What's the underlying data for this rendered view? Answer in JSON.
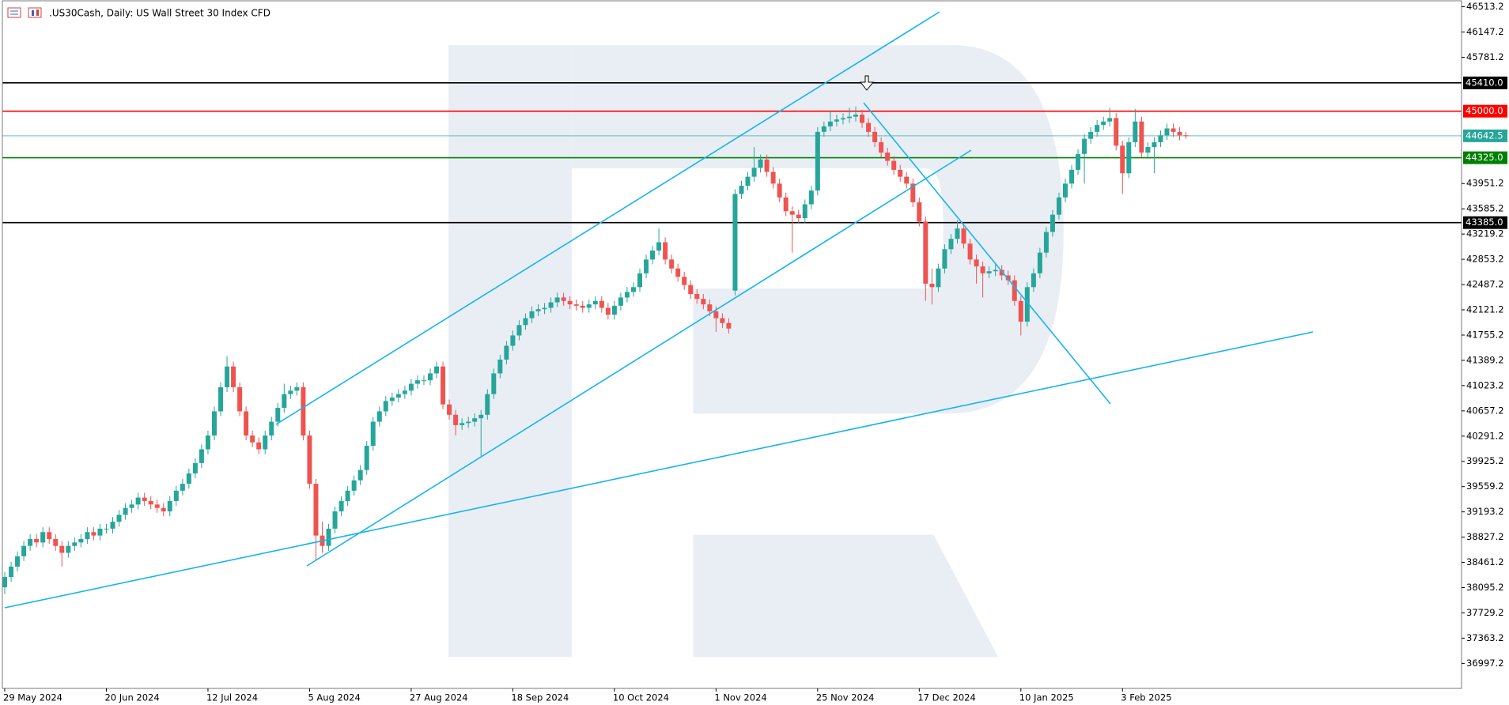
{
  "chart_data": {
    "type": "candlestick",
    "title": ".US30Cash, Daily:  US Wall Street 30 Index CFD",
    "up_color": "#26a69a",
    "down_color": "#ef5350",
    "grid": false,
    "ylim": [
      36635,
      46611
    ],
    "yticks": [
      46513.2,
      46147.2,
      45781.2,
      43951.2,
      43585.2,
      43219.2,
      42853.2,
      42487.2,
      42121.2,
      41755.2,
      41389.2,
      41023.2,
      40657.2,
      40291.2,
      39925.2,
      39559.2,
      39193.2,
      38827.2,
      38461.2,
      38095.2,
      37729.2,
      37363.2,
      36997.2
    ],
    "levels": [
      {
        "value": 45410,
        "label": "45410.0",
        "color": "#000000"
      },
      {
        "value": 45000,
        "label": "45000.0",
        "color": "#ff0000"
      },
      {
        "value": 44642.5,
        "label": "44642.5",
        "color": "#26a69a"
      },
      {
        "value": 44325,
        "label": "44325.0",
        "color": "#008000"
      },
      {
        "value": 43385,
        "label": "43385.0",
        "color": "#000000"
      }
    ],
    "categories": [
      "29 May 2024",
      null,
      null,
      null,
      null,
      null,
      null,
      null,
      null,
      null,
      null,
      null,
      null,
      null,
      null,
      null,
      "20 Jun 2024",
      null,
      null,
      null,
      null,
      null,
      null,
      null,
      null,
      null,
      null,
      null,
      null,
      null,
      null,
      null,
      "12 Jul 2024",
      null,
      null,
      null,
      null,
      null,
      null,
      null,
      null,
      null,
      null,
      null,
      null,
      null,
      null,
      null,
      "5 Aug 2024",
      null,
      null,
      null,
      null,
      null,
      null,
      null,
      null,
      null,
      null,
      null,
      null,
      null,
      null,
      null,
      "27 Aug 2024",
      null,
      null,
      null,
      null,
      null,
      null,
      null,
      null,
      null,
      null,
      null,
      null,
      null,
      null,
      null,
      "18 Sep 2024",
      null,
      null,
      null,
      null,
      null,
      null,
      null,
      null,
      null,
      null,
      null,
      null,
      null,
      null,
      null,
      "10 Oct 2024",
      null,
      null,
      null,
      null,
      null,
      null,
      null,
      null,
      null,
      null,
      null,
      null,
      null,
      null,
      null,
      "1 Nov 2024",
      null,
      null,
      null,
      null,
      null,
      null,
      null,
      null,
      null,
      null,
      null,
      null,
      null,
      null,
      null,
      "25 Nov 2024",
      null,
      null,
      null,
      null,
      null,
      null,
      null,
      null,
      null,
      null,
      null,
      null,
      null,
      null,
      null,
      "17 Dec 2024",
      null,
      null,
      null,
      null,
      null,
      null,
      null,
      null,
      null,
      null,
      null,
      null,
      null,
      null,
      null,
      "10 Jan 2025",
      null,
      null,
      null,
      null,
      null,
      null,
      null,
      null,
      null,
      null,
      null,
      null,
      null,
      null,
      null,
      "3 Feb 2025",
      null,
      null,
      null,
      null,
      null,
      null,
      null,
      null,
      null,
      null
    ],
    "ohlc": [
      [
        38100,
        38320,
        38000,
        38250
      ],
      [
        38250,
        38470,
        38180,
        38400
      ],
      [
        38400,
        38620,
        38330,
        38550
      ],
      [
        38550,
        38770,
        38480,
        38700
      ],
      [
        38700,
        38870,
        38630,
        38800
      ],
      [
        38800,
        38870,
        38680,
        38750
      ],
      [
        38750,
        38970,
        38680,
        38900
      ],
      [
        38900,
        38970,
        38730,
        38800
      ],
      [
        38800,
        38870,
        38630,
        38700
      ],
      [
        38700,
        38770,
        38400,
        38600
      ],
      [
        38600,
        38770,
        38530,
        38700
      ],
      [
        38700,
        38820,
        38630,
        38750
      ],
      [
        38750,
        38870,
        38680,
        38800
      ],
      [
        38800,
        38970,
        38730,
        38900
      ],
      [
        38900,
        38970,
        38780,
        38850
      ],
      [
        38850,
        39020,
        38780,
        38950
      ],
      [
        38950,
        39020,
        38880,
        38950
      ],
      [
        38950,
        39120,
        38880,
        39050
      ],
      [
        39050,
        39220,
        38980,
        39150
      ],
      [
        39150,
        39320,
        39080,
        39250
      ],
      [
        39250,
        39370,
        39180,
        39300
      ],
      [
        39300,
        39470,
        39230,
        39400
      ],
      [
        39400,
        39470,
        39280,
        39350
      ],
      [
        39350,
        39420,
        39230,
        39300
      ],
      [
        39300,
        39370,
        39180,
        39250
      ],
      [
        39250,
        39320,
        39130,
        39200
      ],
      [
        39200,
        39420,
        39130,
        39350
      ],
      [
        39350,
        39570,
        39280,
        39500
      ],
      [
        39500,
        39670,
        39430,
        39600
      ],
      [
        39600,
        39820,
        39530,
        39750
      ],
      [
        39750,
        39970,
        39680,
        39900
      ],
      [
        39900,
        40170,
        39830,
        40100
      ],
      [
        40100,
        40370,
        40030,
        40300
      ],
      [
        40300,
        40720,
        40230,
        40650
      ],
      [
        40650,
        41070,
        40580,
        41000
      ],
      [
        41000,
        41450,
        40930,
        41300
      ],
      [
        41300,
        41370,
        40930,
        41000
      ],
      [
        41000,
        41070,
        40580,
        40650
      ],
      [
        40650,
        40720,
        40230,
        40300
      ],
      [
        40300,
        40370,
        40130,
        40200
      ],
      [
        40200,
        40270,
        40030,
        40100
      ],
      [
        40100,
        40370,
        40030,
        40300
      ],
      [
        40300,
        40570,
        40230,
        40500
      ],
      [
        40500,
        40770,
        40430,
        40700
      ],
      [
        40700,
        41050,
        40630,
        40900
      ],
      [
        40900,
        41020,
        40830,
        40950
      ],
      [
        40950,
        41070,
        40880,
        41000
      ],
      [
        41000,
        41070,
        40230,
        40300
      ],
      [
        40300,
        40370,
        39530,
        39600
      ],
      [
        39600,
        39670,
        38500,
        38850
      ],
      [
        38850,
        39050,
        38600,
        38700
      ],
      [
        38700,
        39020,
        38630,
        38950
      ],
      [
        38950,
        39270,
        38880,
        39200
      ],
      [
        39200,
        39420,
        39130,
        39350
      ],
      [
        39350,
        39570,
        39280,
        39500
      ],
      [
        39500,
        39720,
        39430,
        39650
      ],
      [
        39650,
        39870,
        39580,
        39800
      ],
      [
        39800,
        40220,
        39730,
        40150
      ],
      [
        40150,
        40570,
        40080,
        40500
      ],
      [
        40500,
        40720,
        40430,
        40650
      ],
      [
        40650,
        40870,
        40580,
        40800
      ],
      [
        40800,
        40920,
        40730,
        40850
      ],
      [
        40850,
        40970,
        40780,
        40900
      ],
      [
        40900,
        41020,
        40830,
        40950
      ],
      [
        40950,
        41120,
        40880,
        41050
      ],
      [
        41050,
        41170,
        40980,
        41100
      ],
      [
        41100,
        41170,
        41030,
        41100
      ],
      [
        41100,
        41270,
        41030,
        41200
      ],
      [
        41200,
        41370,
        41130,
        41300
      ],
      [
        41300,
        41370,
        40680,
        40750
      ],
      [
        40750,
        40820,
        40530,
        40600
      ],
      [
        40600,
        40670,
        40300,
        40450
      ],
      [
        40450,
        40550,
        40380,
        40480
      ],
      [
        40480,
        40570,
        40410,
        40500
      ],
      [
        40500,
        40620,
        40430,
        40550
      ],
      [
        40550,
        40670,
        40000,
        40600
      ],
      [
        40600,
        40970,
        40530,
        40900
      ],
      [
        40900,
        41270,
        40830,
        41200
      ],
      [
        41200,
        41470,
        41130,
        41400
      ],
      [
        41400,
        41670,
        41330,
        41600
      ],
      [
        41600,
        41820,
        41530,
        41750
      ],
      [
        41750,
        41970,
        41680,
        41900
      ],
      [
        41900,
        42070,
        41830,
        42000
      ],
      [
        42000,
        42170,
        41930,
        42100
      ],
      [
        42100,
        42200,
        42030,
        42130
      ],
      [
        42130,
        42220,
        42060,
        42150
      ],
      [
        42150,
        42300,
        42080,
        42230
      ],
      [
        42230,
        42370,
        42160,
        42300
      ],
      [
        42300,
        42370,
        42180,
        42250
      ],
      [
        42250,
        42320,
        42130,
        42200
      ],
      [
        42200,
        42270,
        42110,
        42180
      ],
      [
        42180,
        42250,
        42080,
        42150
      ],
      [
        42150,
        42270,
        42080,
        42200
      ],
      [
        42200,
        42320,
        42130,
        42250
      ],
      [
        42250,
        42320,
        42080,
        42150
      ],
      [
        42150,
        42220,
        41980,
        42050
      ],
      [
        42050,
        42250,
        41980,
        42180
      ],
      [
        42180,
        42370,
        42110,
        42300
      ],
      [
        42300,
        42450,
        42230,
        42380
      ],
      [
        42380,
        42520,
        42310,
        42450
      ],
      [
        42450,
        42720,
        42380,
        42650
      ],
      [
        42650,
        42920,
        42580,
        42850
      ],
      [
        42850,
        43050,
        42780,
        42980
      ],
      [
        42980,
        43300,
        42910,
        43100
      ],
      [
        43100,
        43170,
        42780,
        42850
      ],
      [
        42850,
        42920,
        42650,
        42720
      ],
      [
        42720,
        42790,
        42530,
        42600
      ],
      [
        42600,
        42670,
        42410,
        42480
      ],
      [
        42480,
        42550,
        42280,
        42350
      ],
      [
        42350,
        42420,
        42210,
        42280
      ],
      [
        42280,
        42350,
        42130,
        42200
      ],
      [
        42200,
        42270,
        42030,
        42100
      ],
      [
        42100,
        42170,
        41800,
        42000
      ],
      [
        42000,
        42070,
        41860,
        41930
      ],
      [
        41930,
        42000,
        41780,
        41850
      ],
      [
        42400,
        43870,
        42330,
        43800
      ],
      [
        43800,
        43990,
        43730,
        43920
      ],
      [
        43920,
        44120,
        43850,
        44050
      ],
      [
        44050,
        44480,
        43980,
        44180
      ],
      [
        44180,
        44370,
        44110,
        44300
      ],
      [
        44300,
        44370,
        44050,
        44120
      ],
      [
        44120,
        44190,
        43880,
        43950
      ],
      [
        43950,
        44020,
        43680,
        43750
      ],
      [
        43750,
        43820,
        43480,
        43550
      ],
      [
        43550,
        43620,
        42950,
        43500
      ],
      [
        43500,
        43570,
        43380,
        43450
      ],
      [
        43450,
        43720,
        43380,
        43650
      ],
      [
        43650,
        43920,
        43580,
        43850
      ],
      [
        43850,
        44770,
        43780,
        44700
      ],
      [
        44700,
        44850,
        44630,
        44780
      ],
      [
        44780,
        45000,
        44710,
        44850
      ],
      [
        44850,
        44950,
        44780,
        44880
      ],
      [
        44880,
        44970,
        44810,
        44900
      ],
      [
        44900,
        45050,
        44830,
        44920
      ],
      [
        44920,
        45070,
        44850,
        44950
      ],
      [
        44950,
        45020,
        44760,
        44830
      ],
      [
        44830,
        44900,
        44630,
        44700
      ],
      [
        44700,
        44770,
        44480,
        44550
      ],
      [
        44550,
        44620,
        44330,
        44400
      ],
      [
        44400,
        44470,
        44210,
        44280
      ],
      [
        44280,
        44350,
        44080,
        44150
      ],
      [
        44150,
        44220,
        43980,
        44050
      ],
      [
        44050,
        44120,
        43880,
        43950
      ],
      [
        43950,
        44020,
        43610,
        43680
      ],
      [
        43680,
        43750,
        43330,
        43400
      ],
      [
        43400,
        43470,
        42250,
        42500
      ],
      [
        42500,
        42720,
        42200,
        42450
      ],
      [
        42450,
        42790,
        42380,
        42720
      ],
      [
        42720,
        43070,
        42650,
        43000
      ],
      [
        43000,
        43220,
        42930,
        43150
      ],
      [
        43150,
        43420,
        43080,
        43300
      ],
      [
        43300,
        43370,
        43010,
        43080
      ],
      [
        43080,
        43150,
        42780,
        42850
      ],
      [
        42850,
        42920,
        42500,
        42750
      ],
      [
        42750,
        42820,
        42300,
        42650
      ],
      [
        42650,
        42750,
        42580,
        42680
      ],
      [
        42680,
        42800,
        42610,
        42700
      ],
      [
        42700,
        42770,
        42550,
        42620
      ],
      [
        42620,
        42690,
        42480,
        42550
      ],
      [
        42550,
        42620,
        42180,
        42250
      ],
      [
        42250,
        42320,
        41750,
        41950
      ],
      [
        41950,
        42520,
        41880,
        42450
      ],
      [
        42450,
        42720,
        42380,
        42650
      ],
      [
        42650,
        43020,
        42580,
        42950
      ],
      [
        42950,
        43320,
        42880,
        43250
      ],
      [
        43250,
        43570,
        43180,
        43500
      ],
      [
        43500,
        43820,
        43430,
        43750
      ],
      [
        43750,
        44020,
        43680,
        43950
      ],
      [
        43950,
        44220,
        43880,
        44150
      ],
      [
        44150,
        44450,
        44080,
        44380
      ],
      [
        44380,
        44670,
        43950,
        44600
      ],
      [
        44600,
        44770,
        44530,
        44700
      ],
      [
        44700,
        44870,
        44630,
        44800
      ],
      [
        44800,
        44920,
        44730,
        44850
      ],
      [
        44850,
        45050,
        44780,
        44900
      ],
      [
        44900,
        44970,
        44430,
        44500
      ],
      [
        44500,
        44570,
        43800,
        44100
      ],
      [
        44100,
        44620,
        44030,
        44550
      ],
      [
        44550,
        45030,
        44480,
        44850
      ],
      [
        44850,
        44920,
        44330,
        44400
      ],
      [
        44400,
        44550,
        44330,
        44480
      ],
      [
        44480,
        44620,
        44100,
        44550
      ],
      [
        44550,
        44720,
        44480,
        44650
      ],
      [
        44650,
        44820,
        44580,
        44750
      ],
      [
        44750,
        44820,
        44630,
        44700
      ],
      [
        44700,
        44770,
        44580,
        44650
      ],
      [
        44650,
        44700,
        44600,
        44642.5
      ]
    ]
  }
}
